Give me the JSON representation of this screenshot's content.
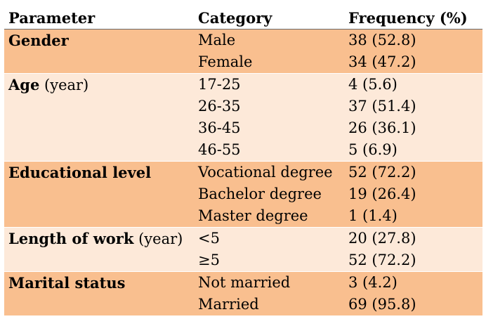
{
  "headers": {
    "parameter": "Parameter",
    "category": "Category",
    "frequency": "Frequency (%)"
  },
  "groups": [
    {
      "name": "Gender",
      "unit": "",
      "rows": [
        {
          "category": "Male",
          "frequency": "38 (52.8)"
        },
        {
          "category": "Female",
          "frequency": "34 (47.2)"
        }
      ]
    },
    {
      "name": "Age",
      "unit": " (year)",
      "rows": [
        {
          "category": "17-25",
          "frequency": "4 (5.6)"
        },
        {
          "category": "26-35",
          "frequency": "37 (51.4)"
        },
        {
          "category": "36-45",
          "frequency": "26 (36.1)"
        },
        {
          "category": "46-55",
          "frequency": "5 (6.9)"
        }
      ]
    },
    {
      "name": "Educational level",
      "unit": "",
      "rows": [
        {
          "category": "Vocational degree",
          "frequency": "52 (72.2)"
        },
        {
          "category": "Bachelor degree",
          "frequency": "19 (26.4)"
        },
        {
          "category": "Master degree",
          "frequency": "1 (1.4)"
        }
      ]
    },
    {
      "name": "Length of work",
      "unit": " (year)",
      "rows": [
        {
          "category": "<5",
          "frequency": "20 (27.8)"
        },
        {
          "category": "≥5",
          "frequency": "52 (72.2)"
        }
      ]
    },
    {
      "name": "Marital status",
      "unit": "",
      "rows": [
        {
          "category": "Not married",
          "frequency": "3 (4.2)"
        },
        {
          "category": "Married",
          "frequency": "69 (95.8)"
        }
      ]
    }
  ],
  "colors": {
    "dark_band": "#f9bf8f",
    "light_band": "#fde9d9",
    "header_rule": "#6b6b6b"
  }
}
